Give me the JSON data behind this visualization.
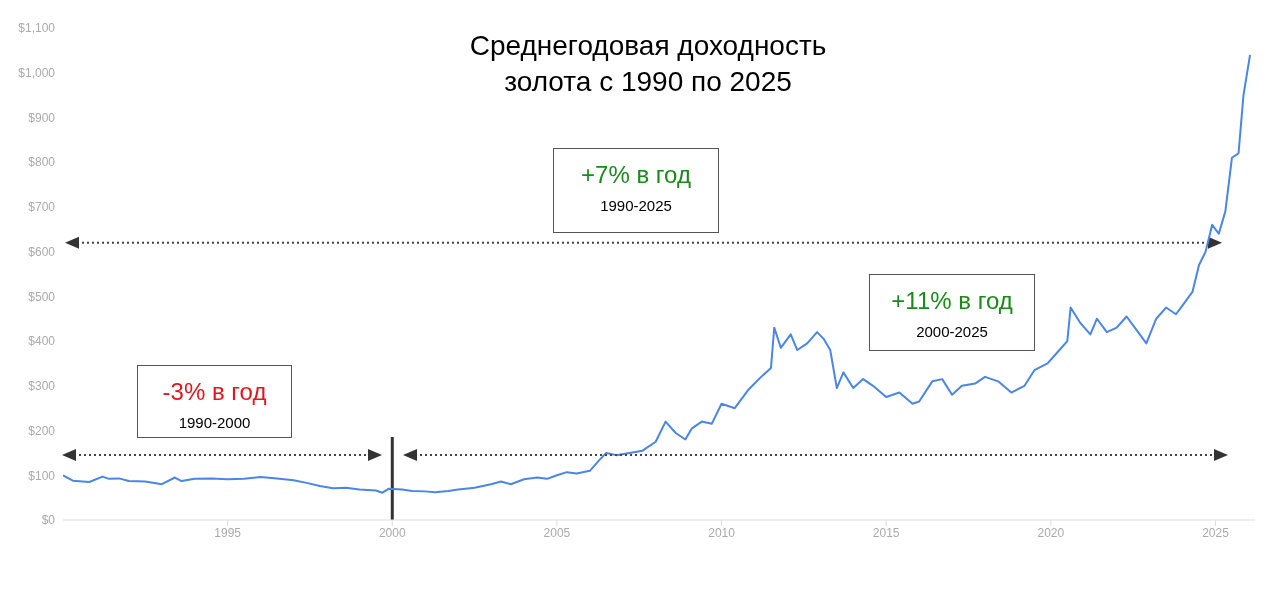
{
  "chart_data": {
    "type": "line",
    "title": "Среднегодовая доходность\nзолота с 1990 по 2025",
    "x": [
      1990.0,
      1990.3,
      1990.8,
      1991.2,
      1991.4,
      1991.7,
      1992.0,
      1992.5,
      1993.0,
      1993.4,
      1993.6,
      1994.0,
      1994.5,
      1995.0,
      1995.5,
      1996.0,
      1996.5,
      1997.0,
      1997.4,
      1997.8,
      1998.2,
      1998.6,
      1999.0,
      1999.5,
      1999.7,
      1999.9,
      2000.3,
      2000.6,
      2001.0,
      2001.3,
      2001.7,
      2002.0,
      2002.5,
      2003.0,
      2003.3,
      2003.6,
      2004.0,
      2004.4,
      2004.7,
      2005.0,
      2005.3,
      2005.6,
      2006.0,
      2006.3,
      2006.5,
      2006.8,
      2007.2,
      2007.6,
      2008.0,
      2008.3,
      2008.6,
      2008.9,
      2009.1,
      2009.4,
      2009.7,
      2010.0,
      2010.4,
      2010.8,
      2011.2,
      2011.5,
      2011.6,
      2011.8,
      2012.1,
      2012.3,
      2012.6,
      2012.9,
      2013.1,
      2013.3,
      2013.5,
      2013.7,
      2014.0,
      2014.3,
      2014.6,
      2015.0,
      2015.4,
      2015.8,
      2016.0,
      2016.4,
      2016.7,
      2017.0,
      2017.3,
      2017.7,
      2018.0,
      2018.4,
      2018.8,
      2019.2,
      2019.5,
      2019.9,
      2020.2,
      2020.5,
      2020.6,
      2020.9,
      2021.2,
      2021.4,
      2021.7,
      2022.0,
      2022.3,
      2022.6,
      2022.9,
      2023.2,
      2023.5,
      2023.8,
      2024.0,
      2024.3,
      2024.5,
      2024.7,
      2024.9,
      2025.1,
      2025.3,
      2025.5,
      2025.7,
      2025.85,
      2026.05
    ],
    "series": [
      {
        "color": "#4a86e8",
        "values": [
          100,
          88,
          85,
          97,
          92,
          93,
          87,
          86,
          80,
          95,
          87,
          92,
          93,
          91,
          92,
          96,
          93,
          89,
          83,
          76,
          71,
          72,
          68,
          66,
          61,
          70,
          68,
          65,
          64,
          62,
          65,
          68,
          72,
          80,
          86,
          80,
          91,
          95,
          92,
          100,
          107,
          104,
          110,
          135,
          150,
          145,
          150,
          155,
          175,
          220,
          195,
          180,
          205,
          220,
          215,
          260,
          250,
          290,
          320,
          340,
          430,
          385,
          415,
          380,
          395,
          420,
          405,
          380,
          295,
          330,
          295,
          315,
          300,
          275,
          285,
          260,
          265,
          310,
          315,
          280,
          300,
          305,
          320,
          310,
          285,
          300,
          335,
          350,
          375,
          400,
          475,
          440,
          415,
          450,
          420,
          430,
          455,
          425,
          395,
          450,
          475,
          460,
          480,
          510,
          570,
          600,
          660,
          640,
          690,
          810,
          820,
          950,
          1040
        ]
      }
    ],
    "xlim": [
      1990,
      2026.2
    ],
    "xticks": [
      1995,
      2000,
      2005,
      2010,
      2015,
      2020,
      2025
    ],
    "ylim": [
      0,
      1100
    ],
    "yticks": [
      {
        "value": 0,
        "label": "$0"
      },
      {
        "value": 100,
        "label": "$100"
      },
      {
        "value": 200,
        "label": "$200"
      },
      {
        "value": 300,
        "label": "$300"
      },
      {
        "value": 400,
        "label": "$400"
      },
      {
        "value": 500,
        "label": "$500"
      },
      {
        "value": 600,
        "label": "$600"
      },
      {
        "value": 700,
        "label": "$700"
      },
      {
        "value": 800,
        "label": "$800"
      },
      {
        "value": 900,
        "label": "$900"
      },
      {
        "value": 1000,
        "label": "$1,000"
      },
      {
        "value": 1100,
        "label": "$1,100"
      }
    ],
    "ref_lines": [
      {
        "axis": "x",
        "value": 2000,
        "color": "#333333"
      },
      {
        "axis": "y",
        "value": 620,
        "color": "#444444",
        "line_style": "dotted"
      }
    ],
    "annotations": [
      "-3% в год",
      "1990-2000",
      "+7% в год",
      "1990-2025",
      "+11% в год",
      "2000-2025"
    ],
    "grid": false,
    "legend": false,
    "marker": "none",
    "line_style": "solid"
  }
}
